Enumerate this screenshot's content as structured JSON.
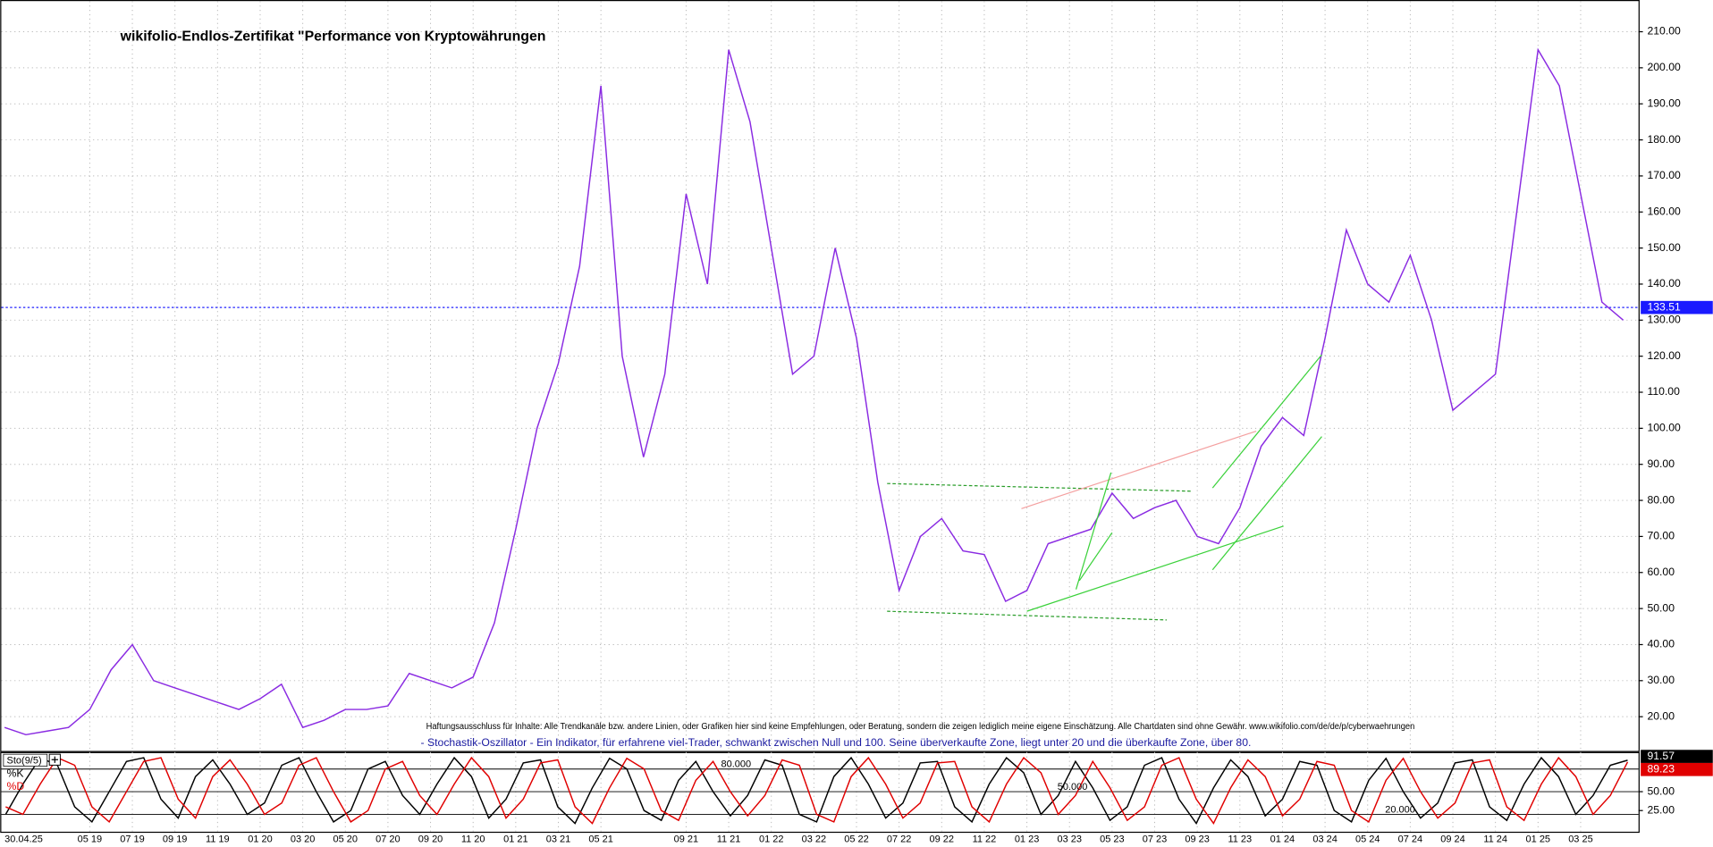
{
  "chart_data": [
    {
      "type": "line",
      "title": "wikifolio-Endlos-Zertifikat \"Performance von Kryptowährungen",
      "date_label": "30.04.25",
      "disclaimer": "Haftungsausschluss für Inhalte: Alle Trendkanäle bzw. andere Linien, oder Grafiken hier sind keine Empfehlungen, oder Beratung, sondern die zeigen lediglich meine eigene Einschätzung. Alle Chartdaten sind ohne Gewähr.  www.wikifolio.com/de/de/p/cyberwaehrungen",
      "note": "- Stochastik-Oszillator - Ein Indikator, für erfahrene viel-Trader, schwankt zwischen Null und 100. Seine überverkaufte Zone, liegt unter 20 und die überkaufte Zone, über 80.",
      "categories": [
        null,
        null,
        null,
        null,
        "05 19",
        null,
        "07 19",
        null,
        "09 19",
        null,
        "11 19",
        null,
        "01 20",
        null,
        "03 20",
        null,
        "05 20",
        null,
        "07 20",
        null,
        "09 20",
        null,
        "11 20",
        null,
        "01 21",
        null,
        "03 21",
        null,
        "05 21",
        null,
        null,
        null,
        "09 21",
        null,
        "11 21",
        null,
        "01 22",
        null,
        "03 22",
        null,
        "05 22",
        null,
        "07 22",
        null,
        "09 22",
        null,
        "11 22",
        null,
        "01 23",
        null,
        "03 23",
        null,
        "05 23",
        null,
        "07 23",
        null,
        "09 23",
        null,
        "11 23",
        null,
        "01 24",
        null,
        "03 24",
        null,
        "05 24",
        null,
        "07 24",
        null,
        "09 24",
        null,
        "11 24",
        null,
        "01 25",
        null,
        "03 25",
        null,
        null
      ],
      "values": [
        17,
        15,
        16,
        17,
        22,
        33,
        40,
        30,
        28,
        26,
        24,
        22,
        25,
        29,
        17,
        19,
        22,
        22,
        23,
        32,
        30,
        28,
        31,
        46,
        72,
        100,
        118,
        145,
        195,
        120,
        92,
        115,
        165,
        140,
        205,
        185,
        150,
        115,
        120,
        150,
        125,
        85,
        55,
        70,
        75,
        66,
        65,
        52,
        55,
        68,
        70,
        72,
        82,
        75,
        78,
        80,
        70,
        68,
        78,
        95,
        103,
        98,
        125,
        155,
        140,
        135,
        148,
        130,
        105,
        110,
        115,
        160,
        205,
        195,
        165,
        135,
        130
      ],
      "color": "#8a2be2",
      "last_value": 133.51,
      "ylim": [
        10.5,
        218.5
      ],
      "yticks": [
        {
          "value": 20,
          "label": "20.00"
        },
        {
          "value": 30,
          "label": "30.00"
        },
        {
          "value": 40,
          "label": "40.00"
        },
        {
          "value": 50,
          "label": "50.00"
        },
        {
          "value": 60,
          "label": "60.00"
        },
        {
          "value": 70,
          "label": "70.00"
        },
        {
          "value": 80,
          "label": "80.00"
        },
        {
          "value": 90,
          "label": "90.00"
        },
        {
          "value": 100,
          "label": "100.00"
        },
        {
          "value": 110,
          "label": "110.00"
        },
        {
          "value": 120,
          "label": "120.00"
        },
        {
          "value": 130,
          "label": "130.00"
        },
        {
          "value": 140,
          "label": "140.00"
        },
        {
          "value": 150,
          "label": "150.00"
        },
        {
          "value": 160,
          "label": "160.00"
        },
        {
          "value": 170,
          "label": "170.00"
        },
        {
          "value": 180,
          "label": "180.00"
        },
        {
          "value": 190,
          "label": "190.00"
        },
        {
          "value": 200,
          "label": "200.00"
        },
        {
          "value": 210,
          "label": "210.00"
        }
      ],
      "grid": true
    },
    {
      "type": "line",
      "title": "Sto(9/5)",
      "series": [
        {
          "name": "%K",
          "color": "#000000",
          "values": [
            20,
            60,
            95,
            85,
            30,
            10,
            50,
            90,
            95,
            40,
            15,
            70,
            92,
            60,
            20,
            35,
            85,
            95,
            50,
            10,
            25,
            80,
            90,
            45,
            20,
            60,
            95,
            70,
            15,
            40,
            88,
            92,
            30,
            8,
            55,
            94,
            80,
            25,
            12,
            65,
            90,
            50,
            18,
            45,
            92,
            85,
            20,
            10,
            70,
            95,
            60,
            15,
            35,
            88,
            90,
            30,
            10,
            60,
            95,
            75,
            20,
            45,
            90,
            55,
            12,
            30,
            85,
            95,
            40,
            8,
            55,
            92,
            70,
            18,
            40,
            90,
            85,
            25,
            10,
            65,
            94,
            50,
            15,
            35,
            88,
            92,
            30,
            12,
            60,
            95,
            70,
            20,
            45,
            85,
            91.57
          ]
        },
        {
          "name": "%D",
          "color": "#e00000",
          "values": [
            30,
            20,
            60,
            95,
            85,
            30,
            10,
            50,
            90,
            95,
            40,
            15,
            70,
            92,
            60,
            20,
            35,
            85,
            95,
            50,
            10,
            25,
            80,
            90,
            45,
            20,
            60,
            95,
            70,
            15,
            40,
            88,
            92,
            30,
            8,
            55,
            94,
            80,
            25,
            12,
            65,
            90,
            50,
            18,
            45,
            92,
            85,
            20,
            10,
            70,
            95,
            60,
            15,
            35,
            88,
            90,
            30,
            10,
            60,
            95,
            75,
            20,
            45,
            90,
            55,
            12,
            30,
            85,
            95,
            40,
            8,
            55,
            92,
            70,
            18,
            40,
            90,
            85,
            25,
            10,
            65,
            94,
            50,
            15,
            35,
            88,
            92,
            30,
            12,
            60,
            95,
            70,
            20,
            45,
            89.23
          ]
        }
      ],
      "levels": [
        {
          "value": 80,
          "label": "80.000"
        },
        {
          "value": 50,
          "label": "50.000"
        },
        {
          "value": 20,
          "label": "20.000"
        }
      ],
      "ylim": [
        -3,
        101
      ],
      "yticks": [
        {
          "value": 50,
          "label": "50.00"
        },
        {
          "value": 25,
          "label": "25.00"
        }
      ]
    }
  ]
}
